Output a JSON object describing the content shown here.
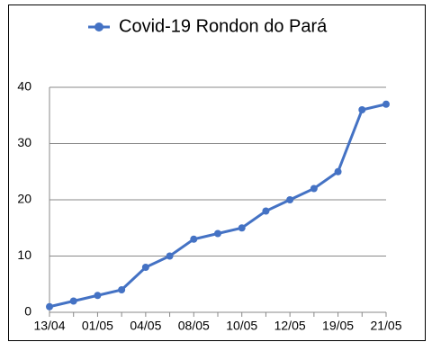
{
  "chart_data": {
    "type": "line",
    "categories": [
      "13/04",
      null,
      "01/05",
      null,
      "04/05",
      null,
      "08/05",
      null,
      "10/05",
      null,
      "12/05",
      null,
      "19/05",
      null,
      "21/05"
    ],
    "series": [
      {
        "name": "Covid-19 Rondon do Pará",
        "color": "#4472c4",
        "values": [
          1,
          2,
          3,
          4,
          8,
          10,
          13,
          14,
          15,
          18,
          20,
          22,
          25,
          36,
          37
        ]
      }
    ],
    "ylim": [
      0,
      40
    ],
    "yticks": [
      0,
      10,
      20,
      30,
      40
    ],
    "grid": true,
    "legend": "top"
  }
}
